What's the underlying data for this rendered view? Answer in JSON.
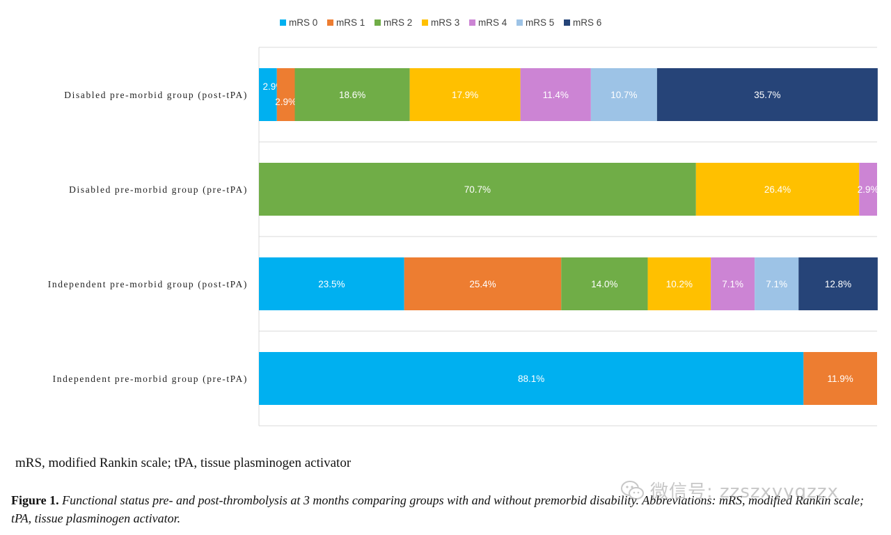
{
  "chart_data": {
    "type": "bar",
    "orientation": "horizontal",
    "stacked": true,
    "percent": true,
    "xlim": [
      0,
      100
    ],
    "grid": false,
    "legend_position": "top-center",
    "categories": [
      "Disabled pre-morbid group (post-tPA)",
      "Disabled pre-morbid group (pre-tPA)",
      "Independent pre-morbid group (post-tPA)",
      "Independent pre-morbid group (pre-tPA)"
    ],
    "series": [
      {
        "name": "mRS 0",
        "color": "#00b0f0",
        "values": [
          2.9,
          0,
          23.5,
          88.1
        ],
        "labels": [
          "2.9%",
          "",
          "23.5%",
          "88.1%"
        ]
      },
      {
        "name": "mRS 1",
        "color": "#ed7d31",
        "values": [
          2.9,
          0,
          25.4,
          11.9
        ],
        "labels": [
          "2.9%",
          "",
          "25.4%",
          "11.9%"
        ]
      },
      {
        "name": "mRS 2",
        "color": "#70ad47",
        "values": [
          18.6,
          70.7,
          14.0,
          0
        ],
        "labels": [
          "18.6%",
          "70.7%",
          "14.0%",
          ""
        ]
      },
      {
        "name": "mRS 3",
        "color": "#ffc000",
        "values": [
          17.9,
          26.4,
          10.2,
          0
        ],
        "labels": [
          "17.9%",
          "26.4%",
          "10.2%",
          ""
        ]
      },
      {
        "name": "mRS 4",
        "color": "#cc84d4",
        "values": [
          11.4,
          2.9,
          7.1,
          0
        ],
        "labels": [
          "11.4%",
          "2.9%",
          "7.1%",
          ""
        ]
      },
      {
        "name": "mRS 5",
        "color": "#9dc3e6",
        "values": [
          10.7,
          0,
          7.1,
          0
        ],
        "labels": [
          "10.7%",
          "",
          "7.1%",
          ""
        ]
      },
      {
        "name": "mRS 6",
        "color": "#264478",
        "values": [
          35.7,
          0,
          12.8,
          0
        ],
        "labels": [
          "35.7%",
          "",
          "12.8%",
          ""
        ]
      }
    ]
  },
  "note": "mRS, modified Rankin scale; tPA, tissue plasminogen activator",
  "caption": {
    "label": "Figure 1.",
    "text": "Functional status pre- and post-thrombolysis at 3 months comparing groups with and without premorbid disability. Abbreviations: mRS, modified Rankin scale; tPA, tissue plasminogen activator."
  },
  "watermark": {
    "text": "微信号: zzszxyygzzx",
    "icon": "wechat-icon"
  }
}
